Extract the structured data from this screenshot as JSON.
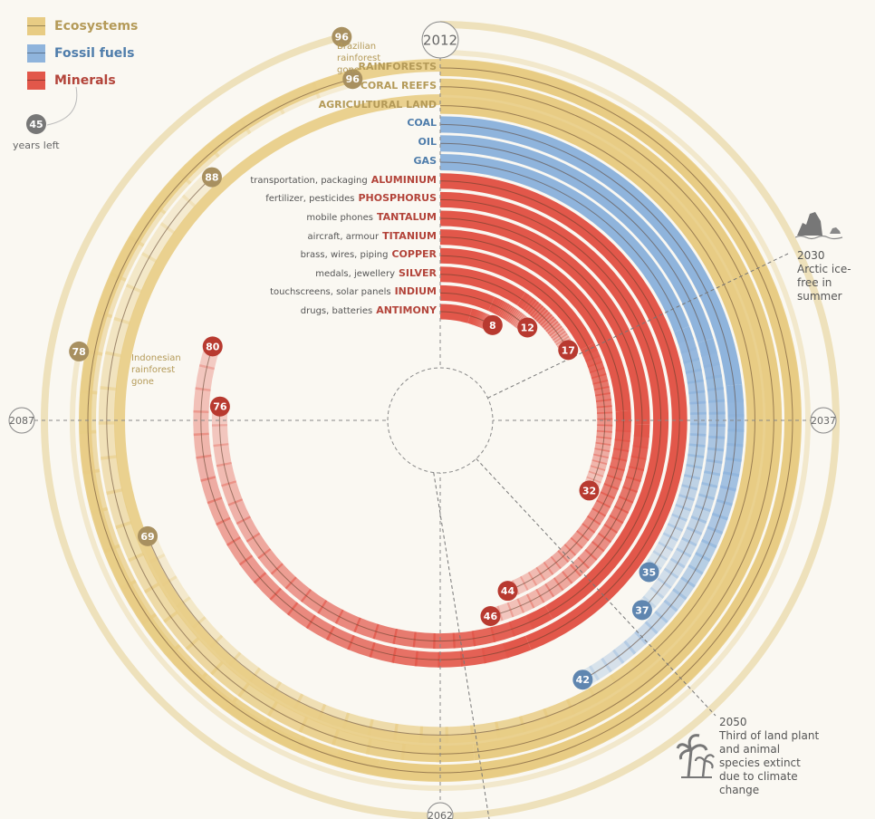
{
  "legend": [
    {
      "label": "Ecosystems",
      "color": "#e8cc84",
      "text_color": "#b49a58"
    },
    {
      "label": "Fossil fuels",
      "color": "#8fb4dc",
      "text_color": "#4f7dab"
    },
    {
      "label": "Minerals",
      "color": "#e2574a",
      "text_color": "#b3443a"
    }
  ],
  "year_markers": {
    "top": "2012",
    "right": "2037",
    "bottom": "2062",
    "left": "2087"
  },
  "years_left_badge": {
    "value": "45",
    "label": "years left"
  },
  "chart_data": {
    "type": "radial-bar",
    "start_year": 2012,
    "years_per_full_circle": 100,
    "title": "",
    "series": [
      {
        "category": "Ecosystems",
        "name": "RAINFORESTS",
        "use": "",
        "years_left": 96
      },
      {
        "category": "Ecosystems",
        "name": "CORAL REEFS",
        "use": "",
        "years_left": 88
      },
      {
        "category": "Ecosystems",
        "name": "AGRICULTURAL LAND",
        "use": "",
        "years_left": 69
      },
      {
        "category": "Fossil fuels",
        "name": "COAL",
        "use": "",
        "years_left": 42
      },
      {
        "category": "Fossil fuels",
        "name": "OIL",
        "use": "",
        "years_left": 37
      },
      {
        "category": "Fossil fuels",
        "name": "GAS",
        "use": "",
        "years_left": 35
      },
      {
        "category": "Minerals",
        "name": "ALUMINIUM",
        "use": "transportation, packaging",
        "years_left": 80
      },
      {
        "category": "Minerals",
        "name": "PHOSPHORUS",
        "use": "fertilizer, pesticides",
        "years_left": 76
      },
      {
        "category": "Minerals",
        "name": "TANTALUM",
        "use": "mobile phones",
        "years_left": 46
      },
      {
        "category": "Minerals",
        "name": "TITANIUM",
        "use": "aircraft, armour",
        "years_left": 44
      },
      {
        "category": "Minerals",
        "name": "COPPER",
        "use": "brass, wires, piping",
        "years_left": 32
      },
      {
        "category": "Minerals",
        "name": "SILVER",
        "use": "medals, jewellery",
        "years_left": 17
      },
      {
        "category": "Minerals",
        "name": "INDIUM",
        "use": "touchscreens, solar panels",
        "years_left": 12
      },
      {
        "category": "Minerals",
        "name": "ANTIMONY",
        "use": "drugs, batteries",
        "years_left": 8
      }
    ],
    "outer_events": [
      {
        "years_left": 96,
        "label": "Brazilian rainforest gone"
      },
      {
        "years_left": 78,
        "label": "Indonesian rainforest gone"
      }
    ],
    "milestones": [
      {
        "year": "2030",
        "text": "Arctic ice-free in summer"
      },
      {
        "year": "2050",
        "text": "Third of land plant and animal species extinct due to climate change"
      }
    ]
  }
}
